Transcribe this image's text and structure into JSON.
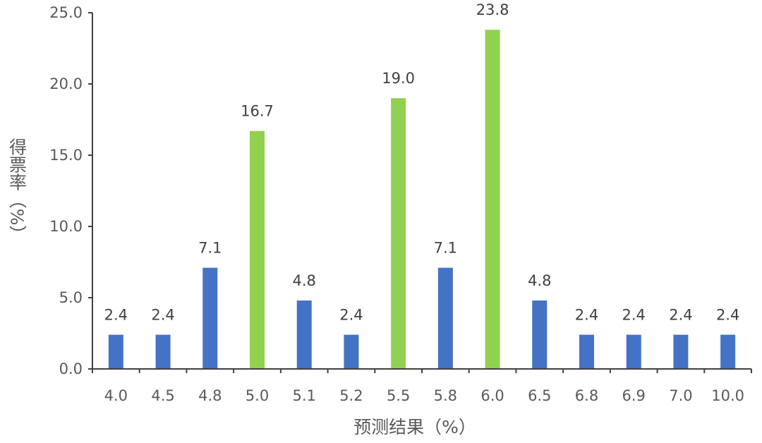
{
  "chart_data": {
    "type": "bar",
    "categories": [
      "4.0",
      "4.5",
      "4.8",
      "5.0",
      "5.1",
      "5.2",
      "5.5",
      "5.8",
      "6.0",
      "6.5",
      "6.8",
      "6.9",
      "7.0",
      "10.0"
    ],
    "values": [
      2.4,
      2.4,
      7.1,
      16.7,
      4.8,
      2.4,
      19.0,
      7.1,
      23.8,
      4.8,
      2.4,
      2.4,
      2.4,
      2.4
    ],
    "data_labels": [
      "2.4",
      "2.4",
      "7.1",
      "16.7",
      "4.8",
      "2.4",
      "19.0",
      "7.1",
      "23.8",
      "4.8",
      "2.4",
      "2.4",
      "2.4",
      "2.4"
    ],
    "highlighted_categories": [
      "5.0",
      "5.5",
      "6.0"
    ],
    "xlabel": "预测结果（%）",
    "ylabel": "得票率（%）",
    "ylim": [
      0,
      25
    ],
    "yticks": [
      0,
      5,
      10,
      15,
      20,
      25
    ],
    "ytick_labels": [
      "0.0",
      "5.0",
      "10.0",
      "15.0",
      "20.0",
      "25.0"
    ],
    "grid": false,
    "legend": "none",
    "colors": {
      "default_bar": "#4472C4",
      "highlight_bar": "#92D050",
      "axis": "#404040"
    }
  }
}
